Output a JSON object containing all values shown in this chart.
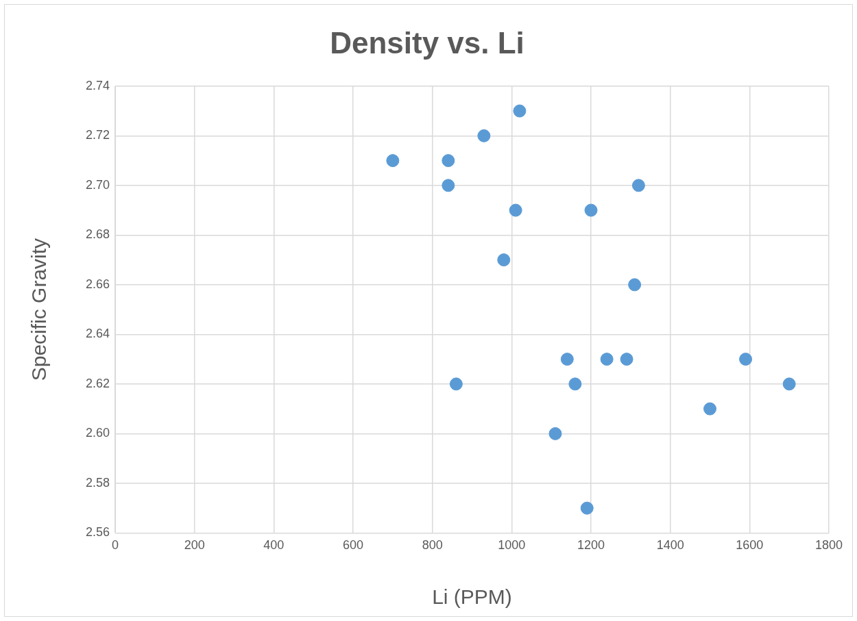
{
  "chart_data": {
    "type": "scatter",
    "title": "Density vs. Li",
    "xlabel": "Li (PPM)",
    "ylabel": "Specific Gravity",
    "x": [
      700,
      840,
      840,
      930,
      1020,
      1010,
      1200,
      1320,
      980,
      1310,
      1140,
      1240,
      1290,
      1590,
      860,
      1160,
      1700,
      1500,
      1110,
      1190
    ],
    "series": [
      {
        "color": "#5b9bd5",
        "values": [
          2.71,
          2.71,
          2.7,
          2.72,
          2.73,
          2.69,
          2.69,
          2.7,
          2.67,
          2.66,
          2.63,
          2.63,
          2.63,
          2.63,
          2.62,
          2.62,
          2.62,
          2.61,
          2.6,
          2.57
        ]
      }
    ],
    "xlim": [
      0,
      1800
    ],
    "xticks": [
      0,
      200,
      400,
      600,
      800,
      1000,
      1200,
      1400,
      1600,
      1800
    ],
    "ylim": [
      2.56,
      2.74
    ],
    "yticks": [
      2.56,
      2.58,
      {
        "value": 2.6,
        "label": "2.60"
      },
      2.62,
      2.64,
      2.66,
      2.68,
      {
        "value": 2.7,
        "label": "2.70"
      },
      2.72,
      2.74
    ],
    "grid": true,
    "legend": false,
    "marker": "circle"
  }
}
